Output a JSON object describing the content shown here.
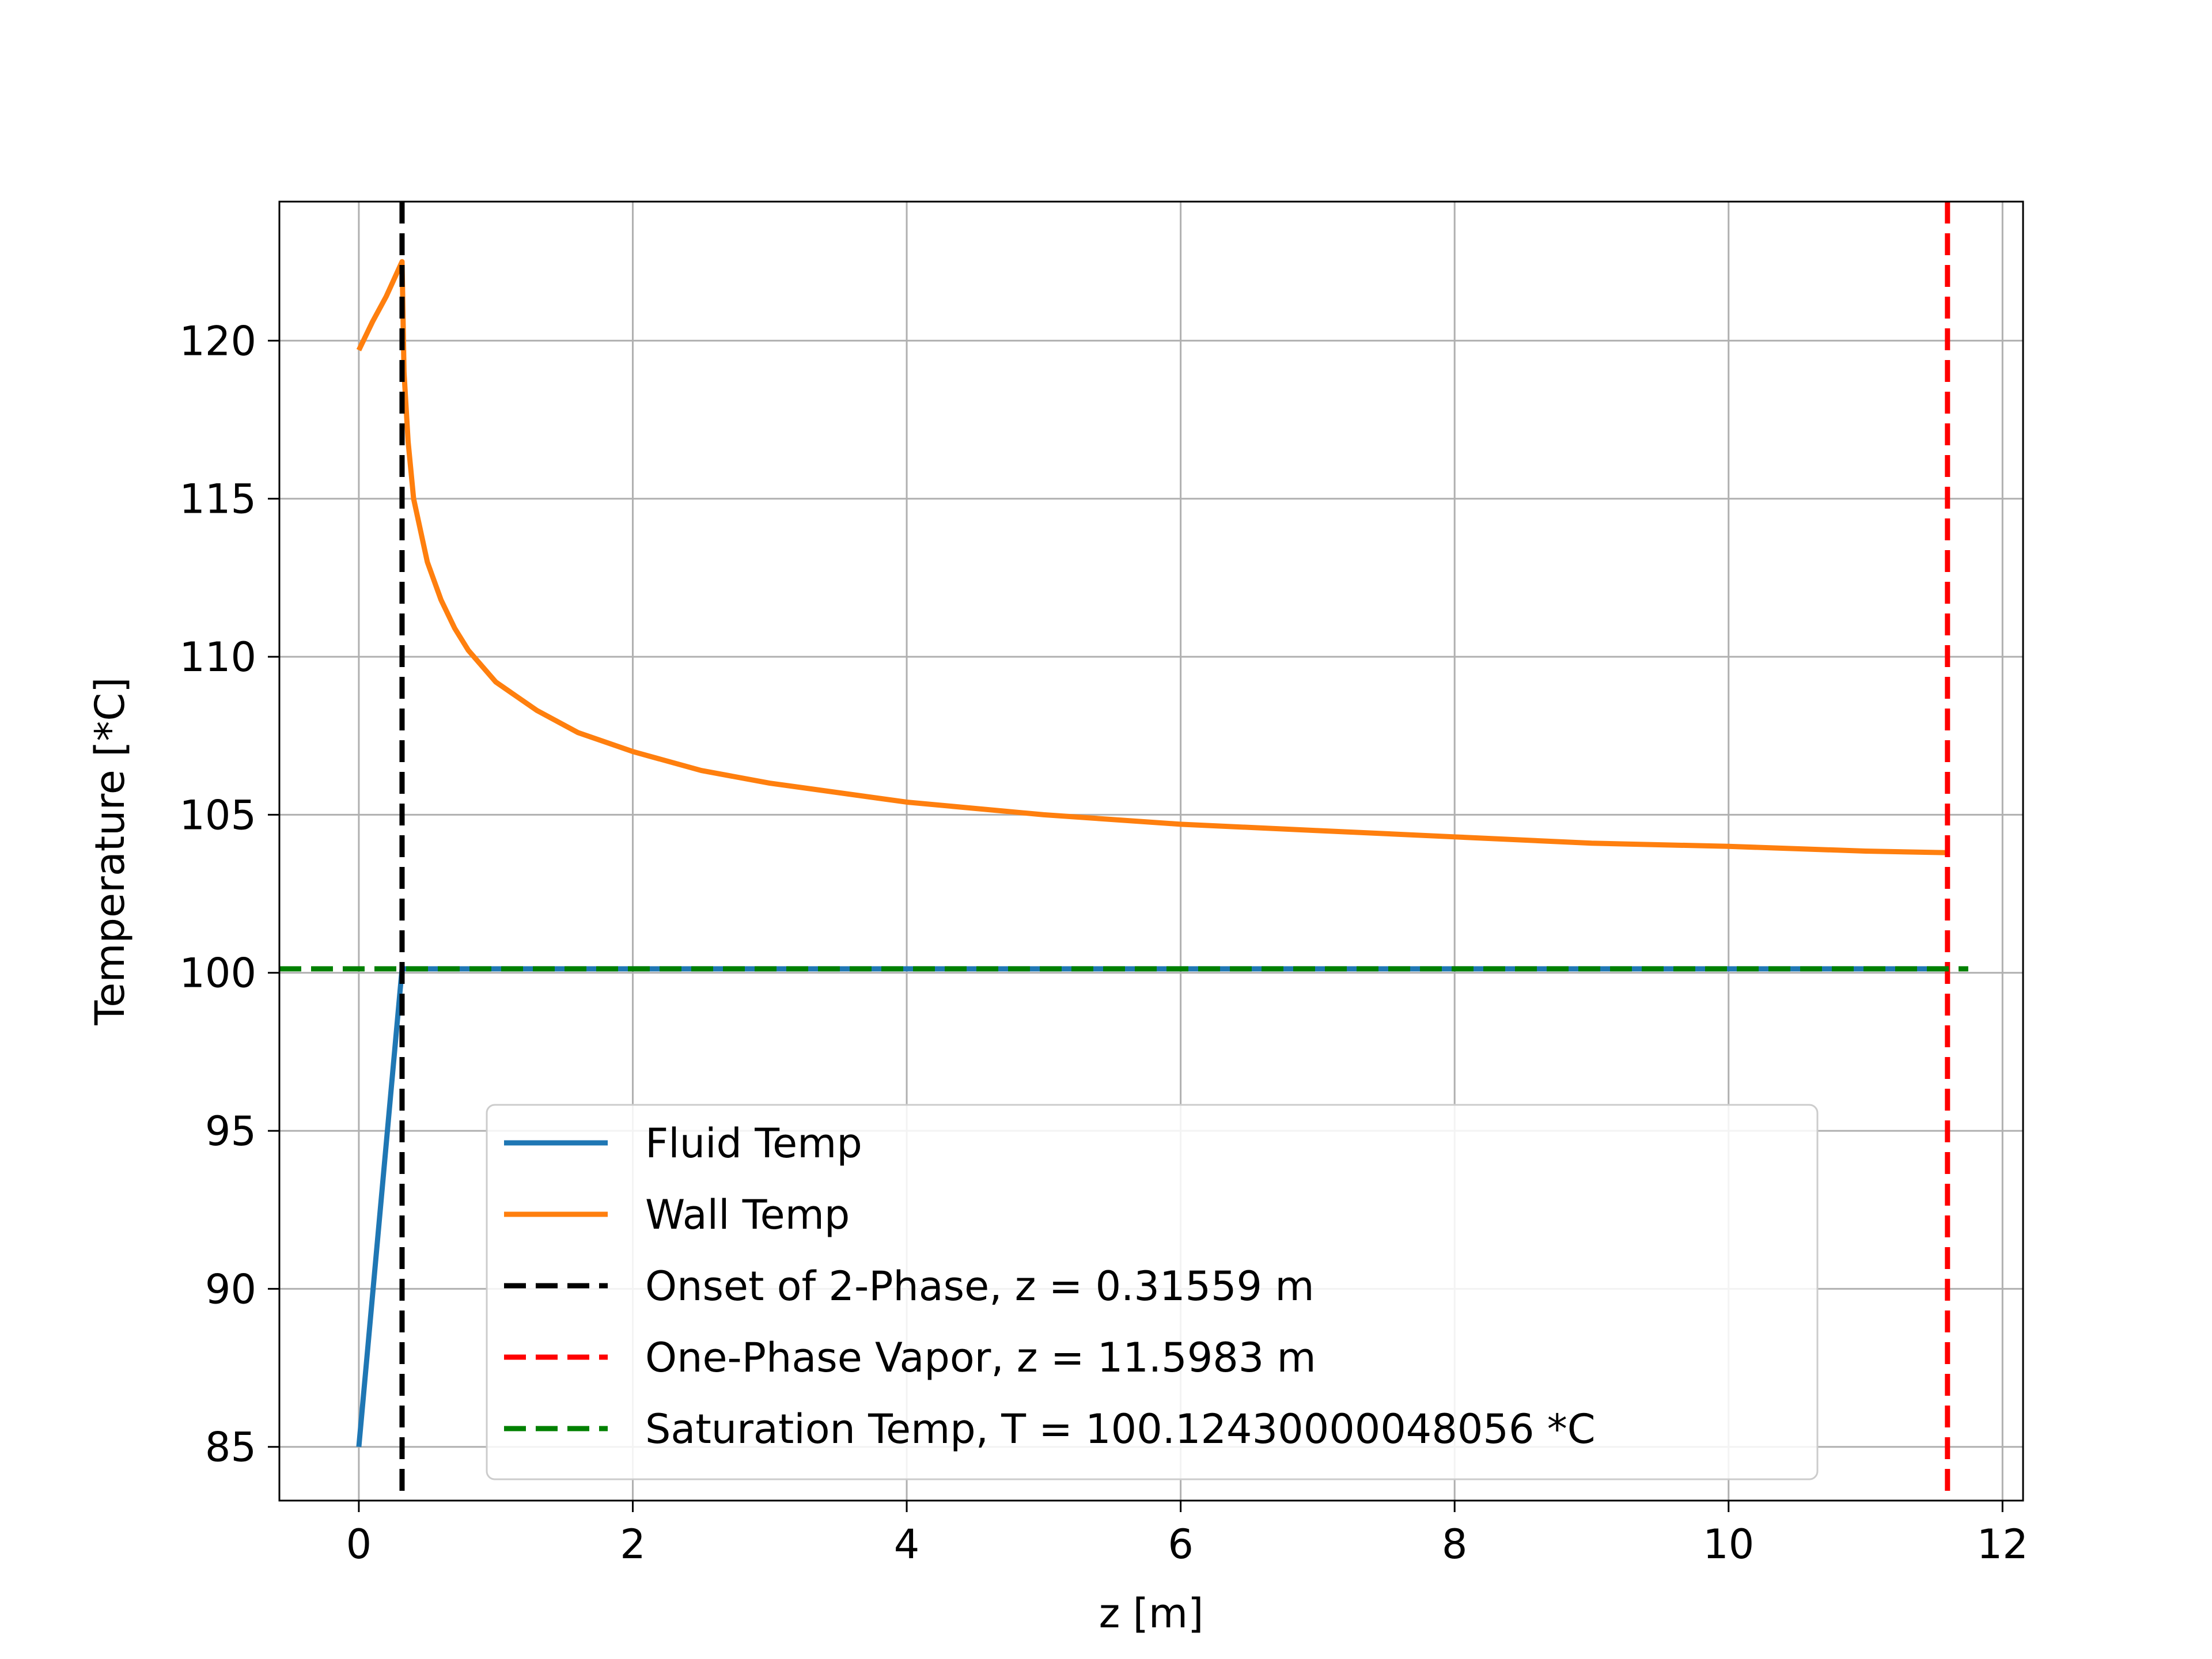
{
  "chart_data": {
    "type": "line",
    "title": "",
    "xlabel": "z [m]",
    "ylabel": "Temperature [*C]",
    "xlim": [
      -0.58,
      12.15
    ],
    "ylim": [
      83.3,
      124.4
    ],
    "xticks": [
      0,
      2,
      4,
      6,
      8,
      10,
      12
    ],
    "yticks": [
      85,
      90,
      95,
      100,
      105,
      110,
      115,
      120
    ],
    "grid": true,
    "legend_position": "lower center",
    "series": [
      {
        "name": "Fluid Temp",
        "color": "#1f77b4",
        "style": "solid",
        "x": [
          0,
          0.31559,
          0.5,
          1,
          2,
          4,
          6,
          8,
          10,
          11.5983
        ],
        "y": [
          85.0,
          100.1243,
          100.1243,
          100.1243,
          100.1243,
          100.1243,
          100.1243,
          100.1243,
          100.1243,
          100.1243
        ]
      },
      {
        "name": "Wall Temp",
        "color": "#ff7f0e",
        "style": "solid",
        "x": [
          0,
          0.1,
          0.2,
          0.31559,
          0.33,
          0.36,
          0.4,
          0.5,
          0.6,
          0.7,
          0.8,
          1.0,
          1.3,
          1.6,
          2.0,
          2.5,
          3.0,
          4.0,
          5.0,
          6.0,
          7.0,
          8.0,
          9.0,
          10.0,
          11.0,
          11.5983
        ],
        "y": [
          119.7,
          120.6,
          121.4,
          122.5,
          119.0,
          116.8,
          115.0,
          113.0,
          111.8,
          110.9,
          110.2,
          109.2,
          108.3,
          107.6,
          107.0,
          106.4,
          106.0,
          105.4,
          105.0,
          104.7,
          104.5,
          104.3,
          104.1,
          104.0,
          103.85,
          103.8
        ]
      },
      {
        "name": "Onset of 2-Phase, z = 0.31559 m",
        "color": "#000000",
        "style": "dashed",
        "vertical_x": 0.31559
      },
      {
        "name": "One-Phase Vapor, z = 11.5983 m",
        "color": "#ff0000",
        "style": "dashed",
        "vertical_x": 11.5983
      },
      {
        "name": "Saturation Temp, T = 100.12430000048056 *C",
        "color": "#008000",
        "style": "dashed",
        "horizontal_y": 100.1243,
        "x": [
          -0.58,
          11.75
        ]
      }
    ]
  }
}
